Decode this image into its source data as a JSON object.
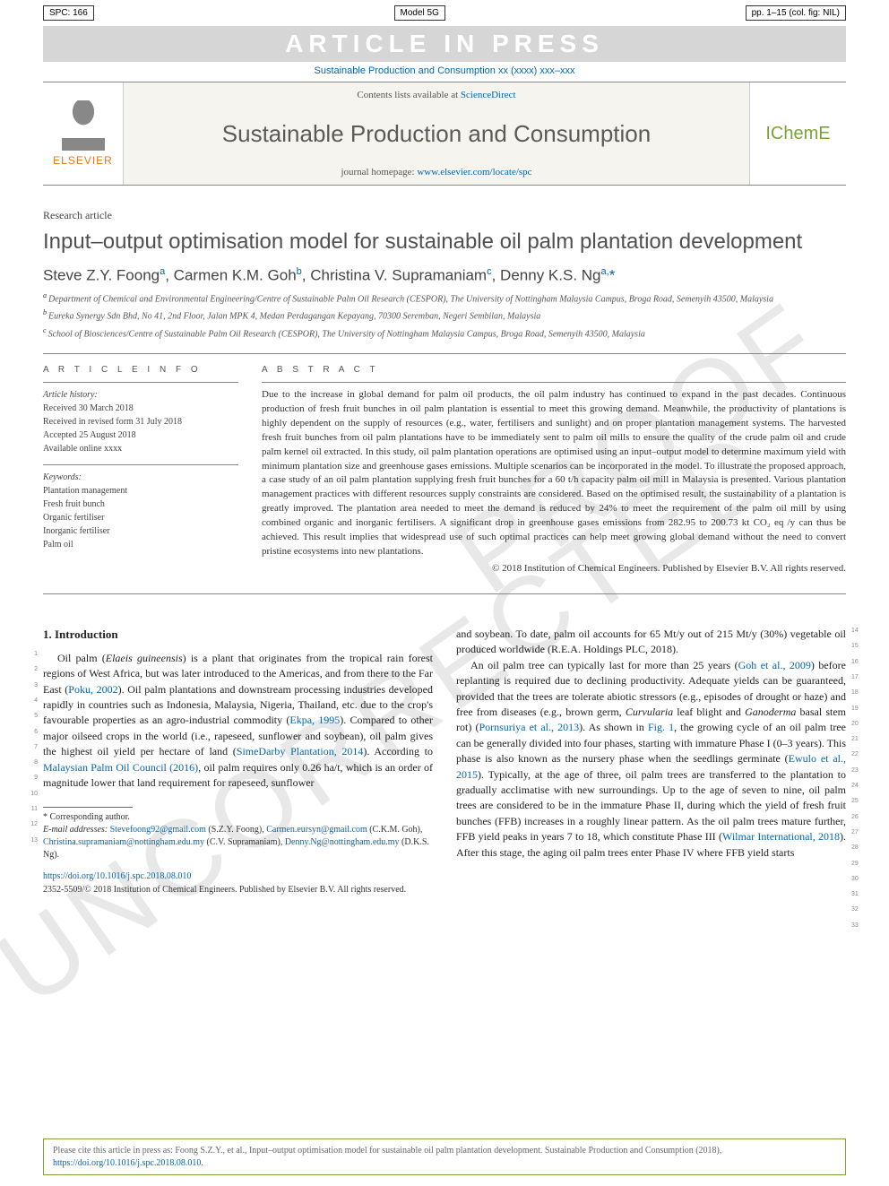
{
  "top_row": {
    "left": "SPC: 166",
    "mid": "Model 5G",
    "right": "pp. 1–15 (col. fig: NIL)"
  },
  "banner": "ARTICLE IN PRESS",
  "running_head": "Sustainable Production and Consumption xx (xxxx) xxx–xxx",
  "masthead": {
    "elsevier": "ELSEVIER",
    "availability_prefix": "Contents lists available at ",
    "availability_link": "ScienceDirect",
    "journal": "Sustainable Production and Consumption",
    "homepage_prefix": "journal homepage: ",
    "homepage_link": "www.elsevier.com/locate/spc",
    "icheme": "IChemE"
  },
  "article_type": "Research article",
  "title": "Input–output optimisation model for sustainable oil palm plantation development",
  "authors_html": "Steve Z.Y. Foong<sup class='sup'>a</sup>, Carmen K.M. Goh<sup class='sup'>b</sup>, Christina V. Supramaniam<sup class='sup'>c</sup>, Denny K.S. Ng<sup class='sup'>a,</sup><span class='star'>*</span>",
  "affiliations": [
    {
      "lbl": "a",
      "text": "Department of Chemical and Environmental Engineering/Centre of Sustainable Palm Oil Research (CESPOR), The University of Nottingham Malaysia Campus, Broga Road, Semenyih 43500, Malaysia"
    },
    {
      "lbl": "b",
      "text": "Eureka Synergy Sdn Bhd, No 41, 2nd Floor, Jalan MPK 4, Medan Perdagangan Kepayang, 70300 Seremban, Negeri Sembilan, Malaysia"
    },
    {
      "lbl": "c",
      "text": "School of Biosciences/Centre of Sustainable Palm Oil Research (CESPOR), The University of Nottingham Malaysia Campus, Broga Road, Semenyih 43500, Malaysia"
    }
  ],
  "article_info": {
    "head": "A R T I C L E   I N F O",
    "history_hdr": "Article history:",
    "history": [
      "Received 30 March 2018",
      "Received in revised form 31 July 2018",
      "Accepted 25 August 2018",
      "Available online xxxx"
    ],
    "keywords_hdr": "Keywords:",
    "keywords": [
      "Plantation management",
      "Fresh fruit bunch",
      "Organic fertiliser",
      "Inorganic fertiliser",
      "Palm oil"
    ]
  },
  "abstract": {
    "head": "A B S T R A C T",
    "text": "Due to the increase in global demand for palm oil products, the oil palm industry has continued to expand in the past decades. Continuous production of fresh fruit bunches in oil palm plantation is essential to meet this growing demand. Meanwhile, the productivity of plantations is highly dependent on the supply of resources (e.g., water, fertilisers and sunlight) and on proper plantation management systems. The harvested fresh fruit bunches from oil palm plantations have to be immediately sent to palm oil mills to ensure the quality of the crude palm oil and crude palm kernel oil extracted. In this study, oil palm plantation operations are optimised using an input–output model to determine maximum yield with minimum plantation size and greenhouse gases emissions. Multiple scenarios can be incorporated in the model. To illustrate the proposed approach, a case study of an oil palm plantation supplying fresh fruit bunches for a 60 t/h capacity palm oil mill in Malaysia is presented. Various plantation management practices with different resources supply constraints are considered. Based on the optimised result, the sustainability of a plantation is greatly improved. The plantation area needed to meet the demand is reduced by 24% to meet the requirement of the palm oil mill by using combined organic and inorganic fertilisers. A significant drop in greenhouse gases emissions from 282.95 to 200.73 kt CO₂ eq /y can thus be achieved. This result implies that widespread use of such optimal practices can help meet growing global demand without the need to convert pristine ecosystems into new plantations.",
    "copyright": "© 2018 Institution of Chemical Engineers. Published by Elsevier B.V. All rights reserved."
  },
  "col_left": {
    "heading": "1. Introduction",
    "para1": "Oil palm (Elaeis guineensis) is a plant that originates from the tropical rain forest regions of West Africa, but was later introduced to the Americas, and from there to the Far East (Poku, 2002). Oil palm plantations and downstream processing industries developed rapidly in countries such as Indonesia, Malaysia, Nigeria, Thailand, etc. due to the crop's favourable properties as an agro-industrial commodity (Ekpa, 1995). Compared to other major oilseed crops in the world (i.e., rapeseed, sunflower and soybean), oil palm gives the highest oil yield per hectare of land (SimeDarby Plantation, 2014). According to Malaysian Palm Oil Council (2016), oil palm requires only 0.26 ha/t, which is an order of magnitude lower that land requirement for rapeseed, sunflower",
    "line_numbers": [
      1,
      2,
      3,
      4,
      5,
      6,
      7,
      8,
      9,
      10,
      11,
      12,
      13
    ]
  },
  "footnotes": {
    "corr": "* Corresponding author.",
    "email_lbl": "E-mail addresses: ",
    "emails": "Stevefoong92@gmail.com (S.Z.Y. Foong), Carmen.eursyn@gmail.com (C.K.M. Goh), Christina.supramaniam@nottingham.edu.my (C.V. Supramaniam), Denny.Ng@nottingham.edu.my (D.K.S. Ng)."
  },
  "doi": {
    "link": "https://doi.org/10.1016/j.spc.2018.08.010",
    "issn": "2352-5509/© 2018 Institution of Chemical Engineers. Published by Elsevier B.V. All rights reserved."
  },
  "col_right": {
    "para1": "and soybean. To date, palm oil accounts for 65 Mt/y out of 215 Mt/y (30%) vegetable oil produced worldwide (R.E.A. Holdings PLC, 2018).",
    "para2": "An oil palm tree can typically last for more than 25 years (Goh et al., 2009) before replanting is required due to declining productivity. Adequate yields can be guaranteed, provided that the trees are tolerate abiotic stressors (e.g., episodes of drought or haze) and free from diseases (e.g., brown germ, Curvularia leaf blight and Ganoderma basal stem rot) (Pornsuriya et al., 2013). As shown in Fig. 1, the growing cycle of an oil palm tree can be generally divided into four phases, starting with immature Phase I (0–3 years). This phase is also known as the nursery phase when the seedlings germinate (Ewulo et al., 2015). Typically, at the age of three, oil palm trees are transferred to the plantation to gradually acclimatise with new surroundings. Up to the age of seven to nine, oil palm trees are considered to be in the immature Phase II, during which the yield of fresh fruit bunches (FFB) increases in a roughly linear pattern. As the oil palm trees mature further, FFB yield peaks in years 7 to 18, which constitute Phase III (Wilmar International, 2018). After this stage, the aging oil palm trees enter Phase IV where FFB yield starts",
    "line_numbers": [
      14,
      15,
      16,
      17,
      18,
      19,
      20,
      21,
      22,
      23,
      24,
      25,
      26,
      27,
      28,
      29,
      30,
      31,
      32,
      33
    ]
  },
  "cite_box": {
    "text": "Please cite this article in press as: Foong S.Z.Y., et al., Input–output optimisation model for sustainable oil palm plantation development. Sustainable Production and Consumption (2018), ",
    "link": "https://doi.org/10.1016/j.spc.2018.08.010"
  },
  "colors": {
    "link": "#0066b3",
    "banner_bg": "#d6d6d6",
    "elsevier_orange": "#e67817",
    "icheme_green": "#7ba33a"
  },
  "watermark": {
    "w1": "UNCORRECTED",
    "w2": "PROOF"
  }
}
